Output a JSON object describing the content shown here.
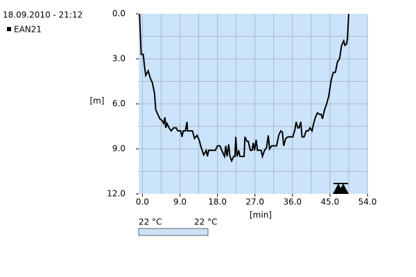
{
  "chart_data": {
    "type": "line",
    "title": "18.09.2010 - 21:12",
    "x_label": "[min]",
    "y_label": "[m]",
    "x": [
      -0.7,
      -0.3,
      0.2,
      0.5,
      0.8,
      1.4,
      1.9,
      2.4,
      2.9,
      3.2,
      3.7,
      4.2,
      4.7,
      5.1,
      5.4,
      5.6,
      5.9,
      6.4,
      6.9,
      7.5,
      8.1,
      8.5,
      9.2,
      9.5,
      9.8,
      10.3,
      10.7,
      10.8,
      12.0,
      12.5,
      13.1,
      13.6,
      14.1,
      14.7,
      15.3,
      15.6,
      15.9,
      17.5,
      18.0,
      18.6,
      19.2,
      19.7,
      20.0,
      20.3,
      20.7,
      21.0,
      21.4,
      21.9,
      22.2,
      22.4,
      22.7,
      23.1,
      23.4,
      24.4,
      24.6,
      25.1,
      25.4,
      25.9,
      26.3,
      26.6,
      26.9,
      27.3,
      27.6,
      28.5,
      28.8,
      29.3,
      29.8,
      30.2,
      30.5,
      31.0,
      32.2,
      32.7,
      33.2,
      33.6,
      33.9,
      34.4,
      34.9,
      36.1,
      36.6,
      36.9,
      37.3,
      37.6,
      38.0,
      38.3,
      38.8,
      39.3,
      39.8,
      40.2,
      40.7,
      41.0,
      41.5,
      42.0,
      42.5,
      42.9,
      43.2,
      43.7,
      44.2,
      44.7,
      45.3,
      45.8,
      46.3,
      46.8,
      47.3,
      47.8,
      48.3,
      48.6,
      49.0,
      49.2,
      49.5
    ],
    "series": [
      {
        "name": "EAN21",
        "color": "#000000",
        "values": [
          0,
          2.7,
          2.7,
          3.5,
          4.1,
          3.8,
          4.3,
          4.6,
          5.3,
          6.4,
          6.7,
          7.0,
          7.1,
          7.3,
          6.9,
          7.6,
          7.3,
          7.6,
          7.8,
          7.6,
          7.6,
          7.8,
          7.8,
          8.2,
          7.8,
          7.8,
          7.2,
          7.8,
          7.8,
          8.3,
          8.1,
          8.4,
          8.9,
          9.4,
          9.1,
          9.5,
          9.1,
          9.1,
          8.8,
          8.8,
          9.2,
          9.5,
          8.8,
          9.5,
          8.7,
          9.5,
          9.8,
          9.5,
          9.5,
          8.2,
          9.5,
          9.1,
          9.5,
          9.5,
          8.2,
          8.5,
          8.5,
          9.1,
          9.1,
          8.6,
          9.1,
          8.4,
          9.1,
          9.1,
          9.5,
          9.1,
          8.9,
          8.1,
          9.0,
          8.8,
          8.8,
          8.1,
          7.8,
          7.9,
          8.8,
          8.3,
          8.2,
          8.2,
          7.7,
          7.2,
          7.6,
          7.6,
          7.2,
          8.2,
          8.2,
          7.8,
          7.8,
          7.6,
          7.8,
          7.4,
          6.9,
          6.6,
          6.7,
          6.7,
          7.0,
          6.4,
          6.0,
          5.5,
          4.4,
          3.9,
          3.9,
          3.2,
          3.0,
          2.1,
          1.8,
          2.1,
          2.0,
          1.6,
          0
        ]
      }
    ],
    "xlim": [
      -0.9,
      54.0
    ],
    "ylim": [
      0,
      12
    ],
    "y_inverted": true,
    "xticks": [
      {
        "value": 0,
        "label": "0.0"
      },
      {
        "value": 9,
        "label": "9.0"
      },
      {
        "value": 18,
        "label": "18.0"
      },
      {
        "value": 27,
        "label": "27.0"
      },
      {
        "value": 36,
        "label": "36.0"
      },
      {
        "value": 45,
        "label": "45.0"
      },
      {
        "value": 54,
        "label": "54.0"
      }
    ],
    "yticks": [
      {
        "value": 0,
        "label": "0.0"
      },
      {
        "value": 3,
        "label": "3.0"
      },
      {
        "value": 6,
        "label": "6.0"
      },
      {
        "value": 9,
        "label": "9.0"
      },
      {
        "value": 12,
        "label": "12.0"
      }
    ],
    "xgrid": [
      0,
      4.5,
      9,
      13.5,
      18,
      22.5,
      27,
      31.5,
      36,
      40.5,
      45,
      49.5,
      54
    ],
    "ygrid": [
      1.5,
      3,
      4.5,
      6,
      7.5,
      9,
      10.5
    ],
    "grid": true,
    "plot_background": "#cce4fb",
    "temperature_bar": {
      "labels": [
        "22 °C",
        "22 °C"
      ],
      "color": "#cce4fb"
    }
  }
}
